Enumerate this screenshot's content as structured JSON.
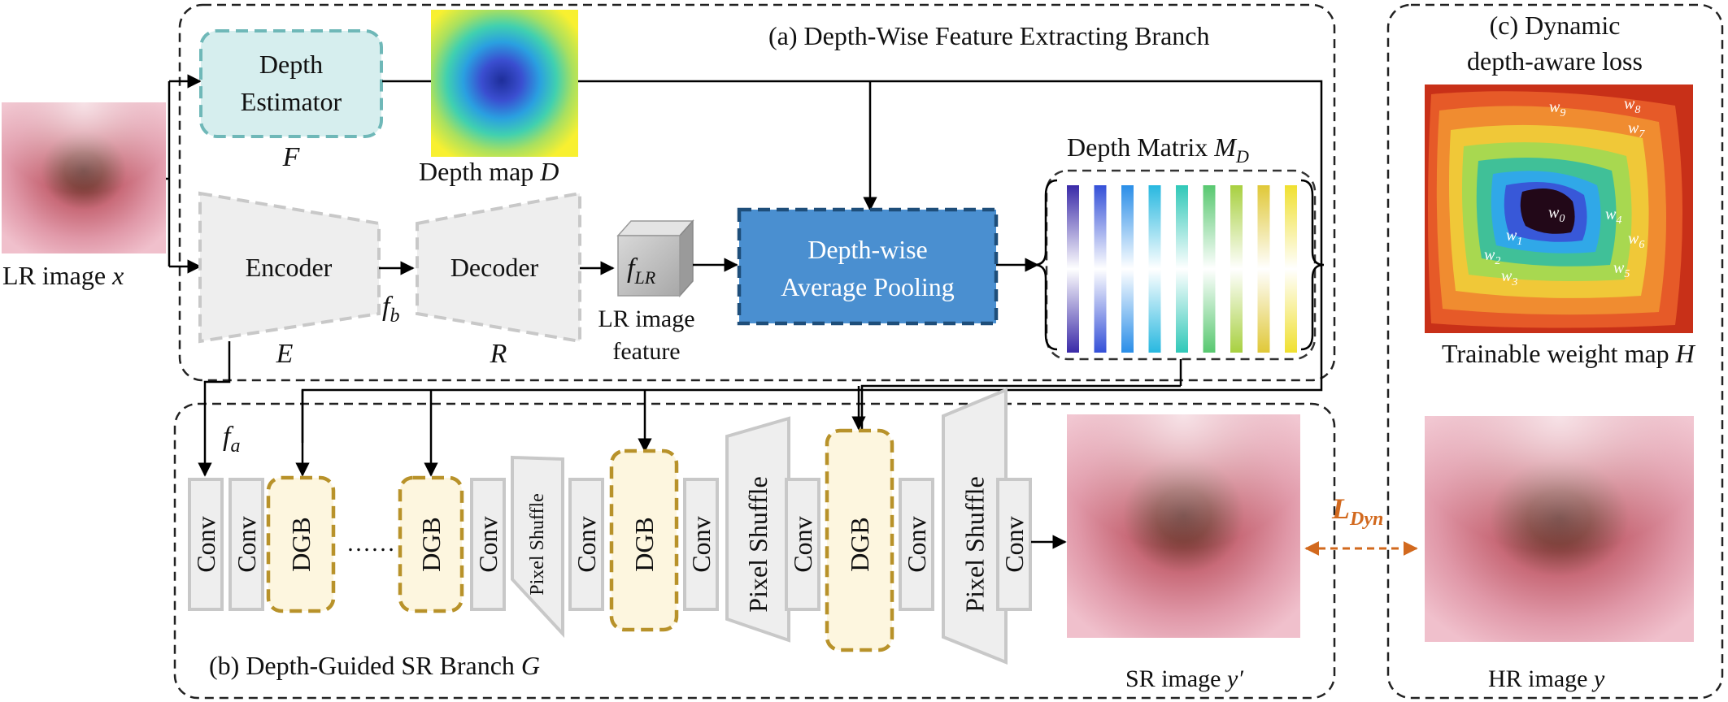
{
  "title_a": "(a) Depth-Wise Feature Extracting Branch",
  "title_b": "(b) Depth-Guided SR Branch ",
  "title_b_sym": "G",
  "title_c1": "(c) Dynamic",
  "title_c2": "depth-aware loss",
  "input": {
    "label": "LR image ",
    "sym": "x"
  },
  "depth_estimator": {
    "line1": "Depth",
    "line2": "Estimator",
    "sym": "F"
  },
  "depth_map": {
    "label": "Depth map ",
    "sym": "D"
  },
  "encoder": {
    "label": "Encoder",
    "sym": "E"
  },
  "decoder": {
    "label": "Decoder",
    "sym": "R"
  },
  "fb": {
    "base": "f",
    "sub": "b"
  },
  "fa": {
    "base": "f",
    "sub": "a"
  },
  "flr": {
    "base": "f",
    "sub": "LR",
    "cap1": "LR image",
    "cap2": "feature"
  },
  "pooling": {
    "line1": "Depth-wise",
    "line2": "Average Pooling"
  },
  "depth_matrix": {
    "label": "Depth Matrix ",
    "sym": "M",
    "sub": "D"
  },
  "sr_blocks": [
    {
      "type": "conv",
      "label": "Conv"
    },
    {
      "type": "conv",
      "label": "Conv"
    },
    {
      "type": "dgb",
      "label": "DGB"
    },
    {
      "type": "dots",
      "label": "……"
    },
    {
      "type": "dgb",
      "label": "DGB"
    },
    {
      "type": "conv",
      "label": "Conv"
    },
    {
      "type": "ps",
      "label": "Pixel Shuffle"
    },
    {
      "type": "conv",
      "label": "Conv"
    },
    {
      "type": "dgb",
      "label": "DGB"
    },
    {
      "type": "conv",
      "label": "Conv"
    },
    {
      "type": "ps",
      "label": "Pixel Shuffle"
    },
    {
      "type": "conv",
      "label": "Conv"
    },
    {
      "type": "dgb",
      "label": "DGB"
    },
    {
      "type": "conv",
      "label": "Conv"
    },
    {
      "type": "ps",
      "label": "Pixel Shuffle"
    },
    {
      "type": "conv",
      "label": "Conv"
    }
  ],
  "sr_image": {
    "label": "SR image ",
    "sym": "y′"
  },
  "hr_image": {
    "label": "HR image ",
    "sym": "y"
  },
  "loss": {
    "base": "L",
    "sub": "Dyn"
  },
  "weight_map": {
    "label": "Trainable weight map ",
    "sym": "H",
    "weights": [
      {
        "base": "w",
        "sub": "0"
      },
      {
        "base": "w",
        "sub": "1"
      },
      {
        "base": "w",
        "sub": "2"
      },
      {
        "base": "w",
        "sub": "3"
      },
      {
        "base": "w",
        "sub": "4"
      },
      {
        "base": "w",
        "sub": "5"
      },
      {
        "base": "w",
        "sub": "6"
      },
      {
        "base": "w",
        "sub": "7"
      },
      {
        "base": "w",
        "sub": "8"
      },
      {
        "base": "w",
        "sub": "9"
      }
    ]
  },
  "colors": {
    "depth_estimator_fill": "#d6eeee",
    "depth_estimator_border": "#6fb8b8",
    "pooling_fill": "#4a8fd0",
    "pooling_border": "#1e4e7a",
    "dgb_fill": "#fdf6df",
    "dgb_border": "#b8922a",
    "gray_block": "#eeeeee",
    "gray_border": "#c8c8c8",
    "loss": "#d2691e"
  }
}
